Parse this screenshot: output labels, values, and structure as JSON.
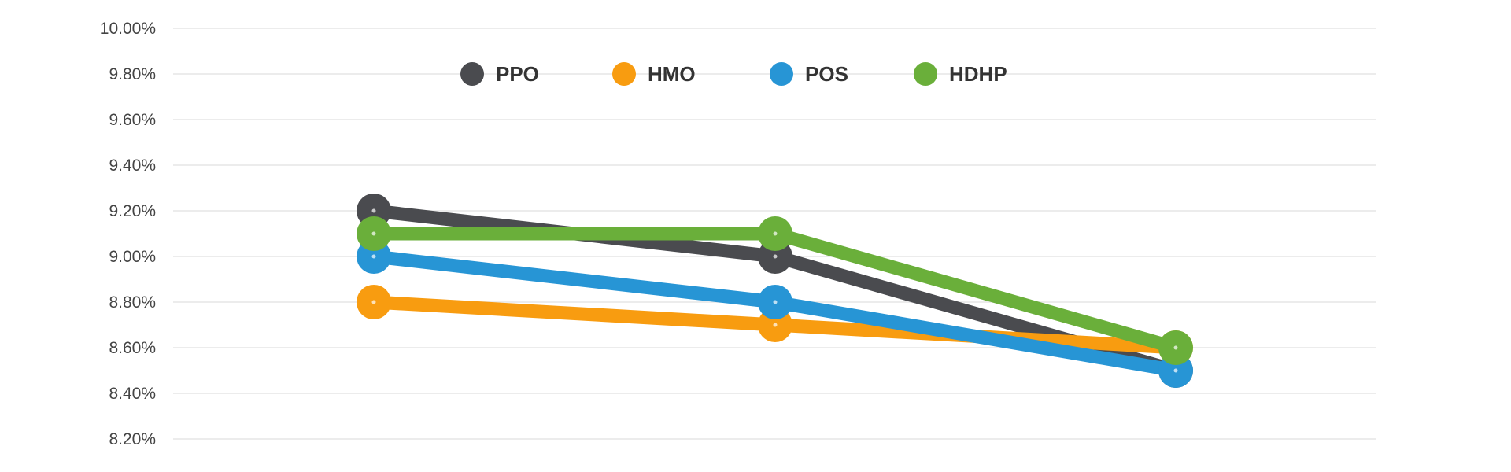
{
  "chart_data": {
    "type": "line",
    "title": "",
    "xlabel": "",
    "ylabel": "",
    "categories": [
      "",
      "",
      ""
    ],
    "ylim": [
      8.2,
      10.0
    ],
    "yticks": [
      "10.00%",
      "9.80%",
      "9.60%",
      "9.40%",
      "9.20%",
      "9.00%",
      "8.80%",
      "8.60%",
      "8.40%",
      "8.20%"
    ],
    "ytick_values": [
      10.0,
      9.8,
      9.6,
      9.4,
      9.2,
      9.0,
      8.8,
      8.6,
      8.4,
      8.2
    ],
    "grid": true,
    "legend_position": "top",
    "series": [
      {
        "name": "PPO",
        "color": "#4a4b4f",
        "values": [
          9.2,
          9.0,
          8.5
        ]
      },
      {
        "name": "HMO",
        "color": "#f89c10",
        "values": [
          8.8,
          8.7,
          8.6
        ]
      },
      {
        "name": "POS",
        "color": "#2795d5",
        "values": [
          9.0,
          8.8,
          8.5
        ]
      },
      {
        "name": "HDHP",
        "color": "#6aaf3a",
        "values": [
          9.1,
          9.1,
          8.6
        ]
      }
    ]
  }
}
